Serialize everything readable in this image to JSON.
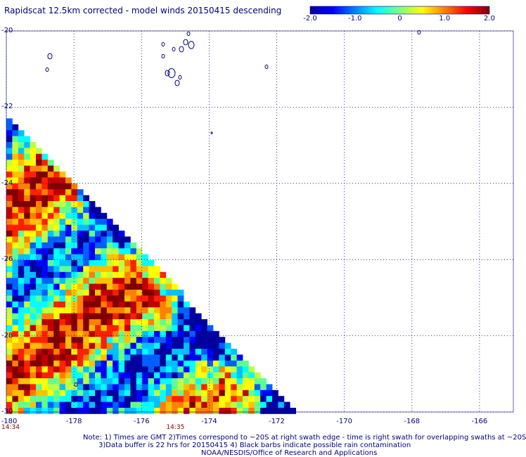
{
  "title": "Rapidscat 12.5km corrected - model winds 20150415 descending",
  "colorbar": {
    "ticks": [
      "-2.0",
      "-1.0",
      "0",
      "1.0",
      "2.0"
    ],
    "tick_values": [
      -2.0,
      -1.0,
      0,
      1.0,
      2.0
    ],
    "range": [
      -2.0,
      2.0
    ],
    "colors": [
      "#0000a0",
      "#0000ff",
      "#0080ff",
      "#00ffff",
      "#80ff80",
      "#ffff00",
      "#ff8000",
      "#ff0000",
      "#800000"
    ]
  },
  "map": {
    "lon_labels": [
      "-180",
      "-178",
      "-176",
      "-174",
      "-172",
      "-170",
      "-168",
      "-166"
    ],
    "lon_values": [
      -180,
      -178,
      -176,
      -174,
      -172,
      -170,
      -168,
      -166
    ],
    "lat_labels": [
      "-20",
      "-22",
      "-24",
      "-26",
      "-28",
      "-30"
    ],
    "lat_values": [
      -20,
      -22,
      -24,
      -26,
      -28,
      -30
    ],
    "lon_range": [
      -180,
      -165
    ],
    "lat_range": [
      -30,
      -20
    ],
    "grid": "dotted",
    "coastline_color": "#000080",
    "time_labels": [
      "14:34",
      "14:35"
    ],
    "time_lons": [
      -180,
      -175
    ]
  },
  "notes": {
    "line1": "Note: 1) Times are GMT 2)Times correspond to ~20S at right swath edge - time is right swath for overlapping swaths at ~20S",
    "line2": "3)Data buffer is 22 hrs for 20150415 4) Black barbs indicate possible rain contamination",
    "line3": "NOAA/NESDIS/Office of Research and Applications"
  }
}
